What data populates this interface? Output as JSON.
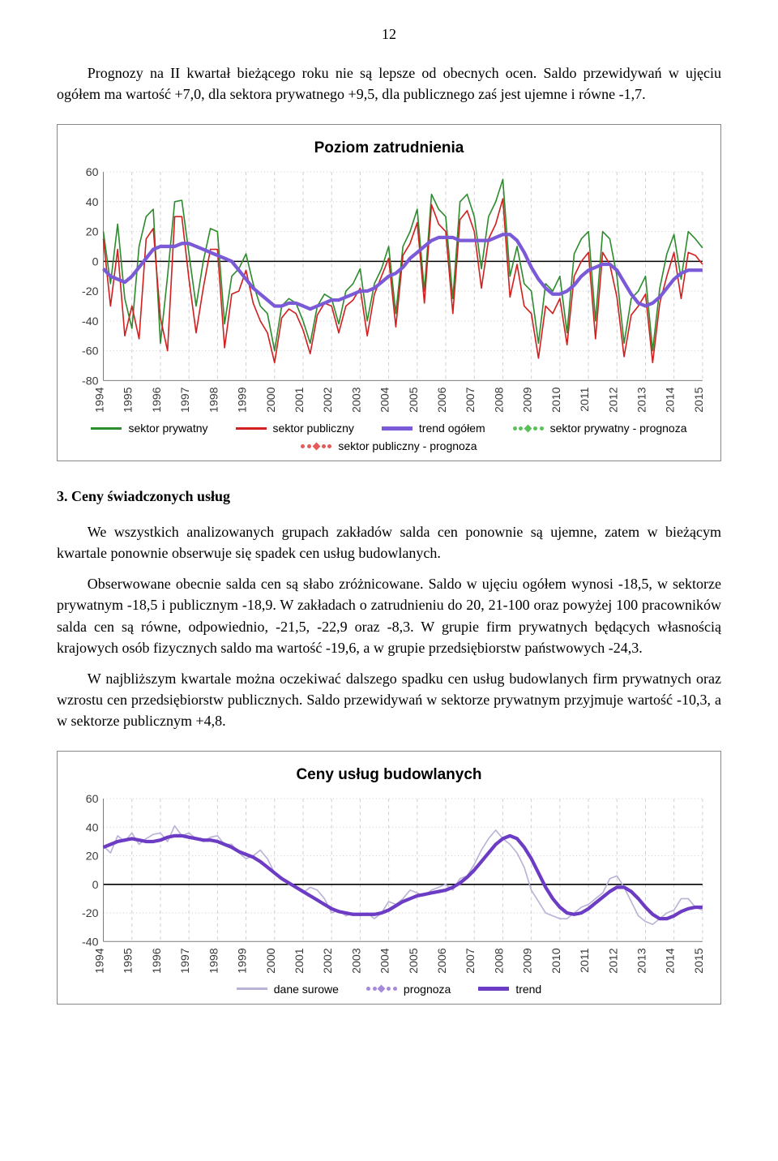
{
  "page_number": "12",
  "para1": "Prognozy na II kwartał bieżącego roku nie są lepsze od obecnych ocen. Saldo przewidywań w ujęciu ogółem ma wartość +7,0, dla sektora prywatnego +9,5, dla publicznego zaś jest ujemne i równe -1,7.",
  "chart1": {
    "title": "Poziom zatrudnienia",
    "yticks": [
      -80,
      -60,
      -40,
      -20,
      0,
      20,
      40,
      60
    ],
    "ymin": -80,
    "ymax": 60,
    "xyears": [
      1994,
      1995,
      1996,
      1997,
      1998,
      1999,
      2000,
      2001,
      2002,
      2003,
      2004,
      2005,
      2006,
      2007,
      2008,
      2009,
      2010,
      2011,
      2012,
      2013,
      2014,
      2015
    ],
    "colors": {
      "private": "#2e8b2e",
      "public": "#d22020",
      "trend": "#7a5ad6",
      "priv_fc": "#5bbf5b",
      "pub_fc": "#e85a5a",
      "grid": "#cfcfcf",
      "axis": "#7b7b7b",
      "tick": "#3b3b3b"
    },
    "legend": [
      {
        "kind": "line",
        "color": "#2e8b2e",
        "label": "sektor prywatny"
      },
      {
        "kind": "line",
        "color": "#d22020",
        "label": "sektor publiczny"
      },
      {
        "kind": "line",
        "color": "#7a5ad6",
        "label": "trend ogółem",
        "thick": true
      },
      {
        "kind": "dotted",
        "color": "#5bbf5b",
        "label": "sektor prywatny - prognoza"
      },
      {
        "kind": "dotted",
        "color": "#e85a5a",
        "label": "sektor publiczny - prognoza"
      }
    ],
    "series_private": [
      20,
      -15,
      25,
      -25,
      -45,
      10,
      30,
      35,
      -55,
      -10,
      40,
      41,
      5,
      -30,
      0,
      22,
      20,
      -42,
      -10,
      -5,
      5,
      -15,
      -30,
      -35,
      -60,
      -30,
      -25,
      -28,
      -40,
      -55,
      -30,
      -22,
      -25,
      -42,
      -20,
      -15,
      -5,
      -40,
      -15,
      -5,
      10,
      -35,
      10,
      20,
      35,
      -20,
      45,
      35,
      30,
      -25,
      40,
      45,
      30,
      -5,
      30,
      40,
      55,
      -10,
      10,
      -15,
      -20,
      -55,
      -15,
      -20,
      -10,
      -48,
      5,
      15,
      20,
      -40,
      20,
      15,
      -10,
      -55,
      -25,
      -20,
      -10,
      -60,
      -18,
      5,
      18,
      -12,
      20,
      15,
      9
    ],
    "series_public": [
      15,
      -30,
      8,
      -50,
      -30,
      -52,
      15,
      22,
      -38,
      -60,
      30,
      30,
      -12,
      -48,
      -18,
      8,
      8,
      -58,
      -22,
      -20,
      -6,
      -28,
      -40,
      -48,
      -68,
      -38,
      -32,
      -35,
      -46,
      -62,
      -36,
      -28,
      -30,
      -48,
      -30,
      -26,
      -18,
      -50,
      -22,
      -10,
      2,
      -44,
      4,
      12,
      26,
      -28,
      38,
      25,
      20,
      -35,
      28,
      34,
      20,
      -18,
      15,
      25,
      42,
      -24,
      -2,
      -30,
      -35,
      -65,
      -30,
      -35,
      -25,
      -56,
      -10,
      0,
      6,
      -52,
      6,
      -2,
      -24,
      -64,
      -36,
      -30,
      -22,
      -68,
      -28,
      -10,
      6,
      -25,
      6,
      4,
      -2
    ],
    "series_trend": [
      -5,
      -10,
      -12,
      -14,
      -10,
      -4,
      2,
      8,
      10,
      10,
      10,
      12,
      12,
      10,
      8,
      6,
      4,
      2,
      0,
      -6,
      -12,
      -18,
      -22,
      -26,
      -30,
      -30,
      -28,
      -28,
      -30,
      -32,
      -30,
      -28,
      -26,
      -26,
      -24,
      -22,
      -20,
      -20,
      -18,
      -14,
      -10,
      -8,
      -4,
      2,
      6,
      10,
      14,
      16,
      16,
      16,
      14,
      14,
      14,
      14,
      14,
      16,
      18,
      18,
      14,
      6,
      -4,
      -12,
      -18,
      -22,
      -22,
      -20,
      -16,
      -10,
      -6,
      -4,
      -2,
      -2,
      -6,
      -14,
      -22,
      -28,
      -30,
      -28,
      -24,
      -18,
      -12,
      -8,
      -6,
      -6,
      -6
    ],
    "title_fontsize": 19,
    "tick_fontsize": 14
  },
  "section3": {
    "heading": "3. Ceny świadczonych usług",
    "p1": "We wszystkich analizowanych grupach zakładów salda cen ponownie są ujemne, zatem w bieżącym kwartale ponownie obserwuje się spadek cen usług budowlanych.",
    "p2": "Obserwowane obecnie salda cen są słabo zróżnicowane. Saldo w ujęciu ogółem wynosi -18,5, w sektorze prywatnym -18,5 i publicznym -18,9. W zakładach o zatrudnieniu do 20, 21-100 oraz powyżej 100 pracowników salda cen są równe, odpowiednio, -21,5, -22,9 oraz -8,3. W grupie firm prywatnych będących własnością krajowych osób fizycznych saldo ma wartość -19,6, a w grupie przedsiębiorstw państwowych -24,3.",
    "p3": "W najbliższym kwartale można oczekiwać dalszego spadku cen usług budowlanych firm prywatnych oraz wzrostu cen przedsiębiorstw publicznych. Saldo przewidywań w sektorze prywatnym przyjmuje wartość -10,3, a w sektorze publicznym +4,8."
  },
  "chart2": {
    "title": "Ceny usług budowlanych",
    "yticks": [
      -40,
      -20,
      0,
      20,
      40,
      60
    ],
    "ymin": -40,
    "ymax": 60,
    "xyears": [
      1994,
      1995,
      1996,
      1997,
      1998,
      1999,
      2000,
      2001,
      2002,
      2003,
      2004,
      2005,
      2006,
      2007,
      2008,
      2009,
      2010,
      2011,
      2012,
      2013,
      2014,
      2015
    ],
    "colors": {
      "raw": "#b9b2d6",
      "trend": "#6c3cc4",
      "fc": "#a68ad9",
      "grid": "#cfcfcf",
      "axis": "#7b7b7b",
      "tick": "#3b3b3b"
    },
    "legend": [
      {
        "kind": "line",
        "color": "#b9b2d6",
        "label": "dane surowe"
      },
      {
        "kind": "dotted",
        "color": "#a68ad9",
        "label": "prognoza"
      },
      {
        "kind": "line",
        "color": "#6c3cc4",
        "label": "trend",
        "thick": true
      }
    ],
    "series_raw": [
      27,
      22,
      34,
      30,
      36,
      28,
      32,
      35,
      36,
      30,
      41,
      34,
      36,
      32,
      30,
      33,
      34,
      28,
      28,
      22,
      18,
      20,
      24,
      18,
      8,
      4,
      0,
      -2,
      -6,
      -2,
      -4,
      -10,
      -20,
      -18,
      -22,
      -20,
      -22,
      -20,
      -24,
      -20,
      -12,
      -14,
      -10,
      -4,
      -6,
      -8,
      -4,
      -2,
      0,
      -4,
      4,
      6,
      14,
      24,
      32,
      38,
      32,
      28,
      22,
      12,
      -4,
      -12,
      -20,
      -22,
      -24,
      -24,
      -20,
      -16,
      -14,
      -10,
      -6,
      4,
      6,
      -2,
      -12,
      -22,
      -26,
      -28,
      -24,
      -20,
      -18,
      -10,
      -10,
      -16,
      -18
    ],
    "series_trend": [
      26,
      28,
      30,
      31,
      32,
      31,
      30,
      30,
      31,
      33,
      34,
      34,
      33,
      32,
      31,
      31,
      30,
      28,
      26,
      23,
      21,
      19,
      16,
      12,
      8,
      4,
      1,
      -2,
      -5,
      -8,
      -11,
      -14,
      -17,
      -19,
      -20,
      -21,
      -21,
      -21,
      -21,
      -20,
      -18,
      -15,
      -12,
      -10,
      -8,
      -7,
      -6,
      -5,
      -4,
      -2,
      1,
      5,
      10,
      16,
      22,
      28,
      32,
      34,
      32,
      26,
      18,
      8,
      -2,
      -10,
      -16,
      -20,
      -21,
      -20,
      -17,
      -13,
      -9,
      -5,
      -2,
      -2,
      -5,
      -10,
      -16,
      -21,
      -24,
      -24,
      -22,
      -19,
      -17,
      -16,
      -16
    ],
    "title_fontsize": 19,
    "tick_fontsize": 14
  }
}
